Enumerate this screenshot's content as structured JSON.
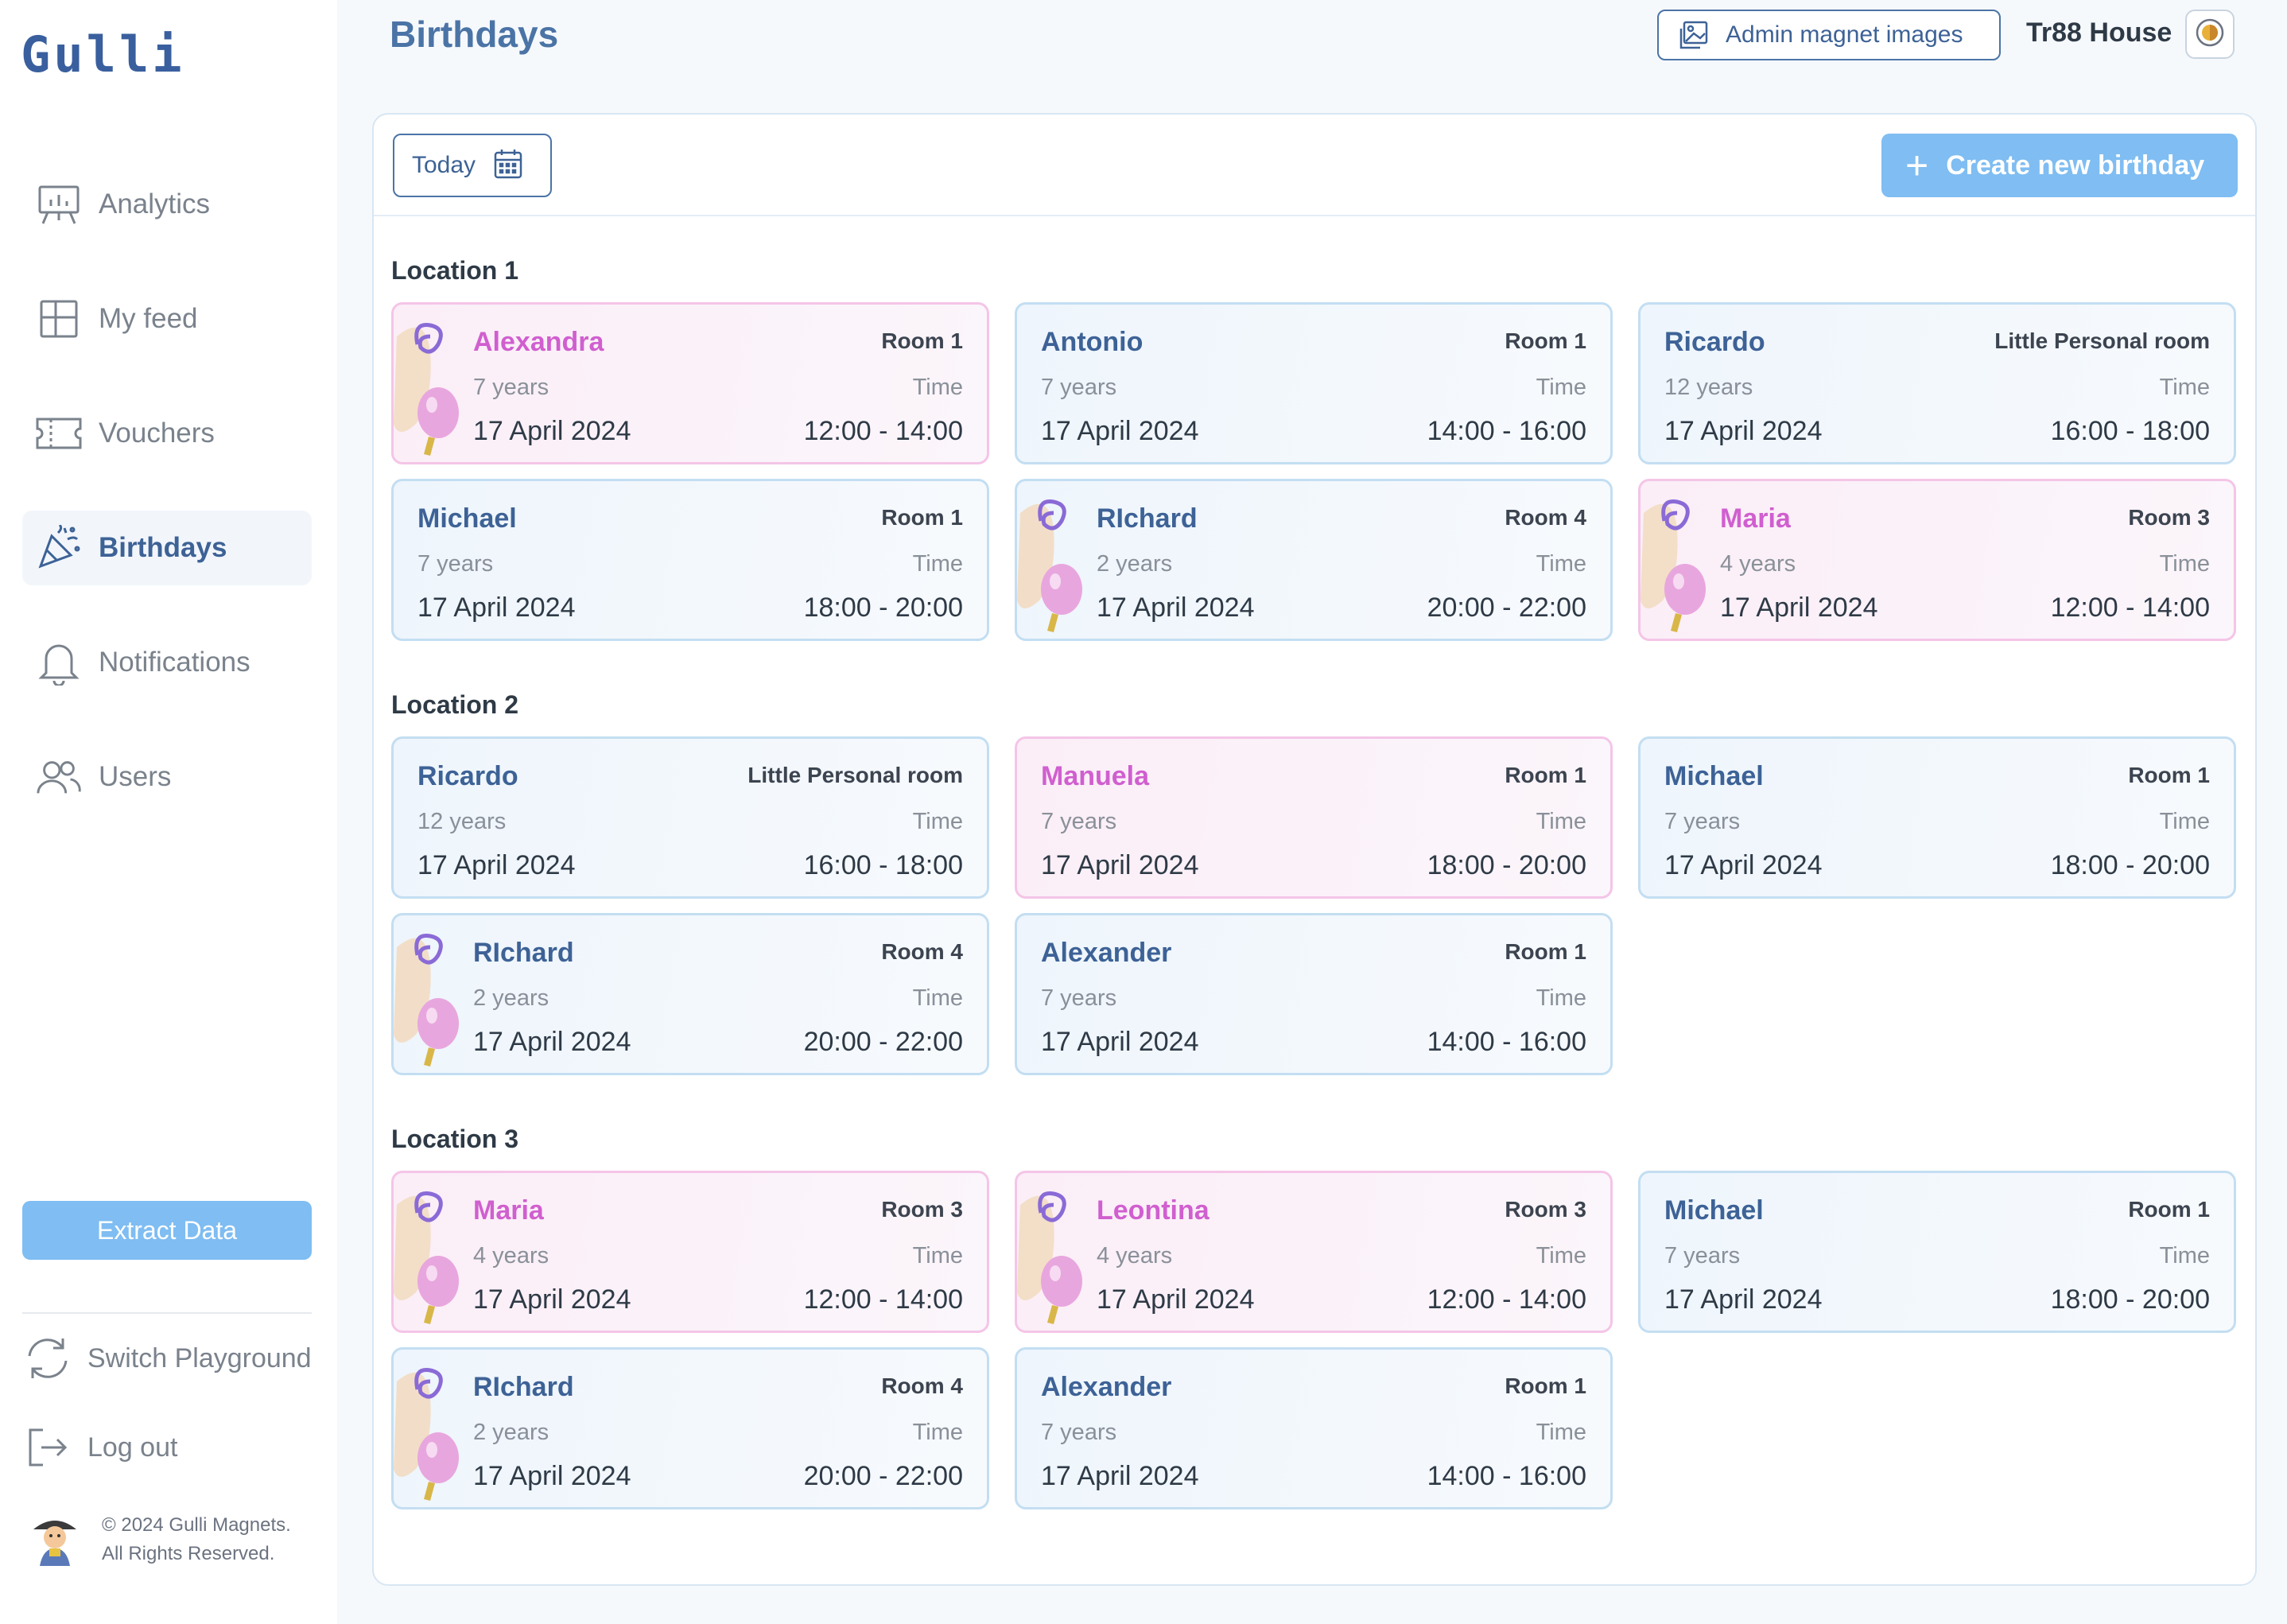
{
  "brand": {
    "logo_text": "Gulli"
  },
  "sidebar": {
    "items": [
      {
        "label": "Analytics",
        "icon": "analytics-board-icon"
      },
      {
        "label": "My feed",
        "icon": "grid-icon"
      },
      {
        "label": "Vouchers",
        "icon": "ticket-icon"
      },
      {
        "label": "Birthdays",
        "icon": "party-popper-icon",
        "active": true
      },
      {
        "label": "Notifications",
        "icon": "bell-icon"
      },
      {
        "label": "Users",
        "icon": "users-icon"
      }
    ],
    "extract_label": "Extract Data",
    "switch_label": "Switch Playground",
    "logout_label": "Log out",
    "footer_line1": "© 2024 Gulli Magnets.",
    "footer_line2": "All Rights Reserved."
  },
  "header": {
    "title": "Birthdays",
    "admin_label": "Admin magnet images",
    "house_name": "Tr88 House"
  },
  "toolbar": {
    "today_label": "Today",
    "create_label": "Create new birthday"
  },
  "colors": {
    "accent": "#7fbdf2",
    "primary": "#3d6296",
    "pink": "#d05fcf"
  },
  "locations": [
    {
      "title": "Location 1",
      "cards": [
        {
          "name": "Alexandra",
          "room": "Room 1",
          "age": "7 years",
          "time_label": "Time",
          "date": "17 April 2024",
          "time": "12:00 - 14:00",
          "pink": true,
          "balloon": true
        },
        {
          "name": "Antonio",
          "room": "Room 1",
          "age": "7 years",
          "time_label": "Time",
          "date": "17 April 2024",
          "time": "14:00 - 16:00",
          "pink": false,
          "balloon": false
        },
        {
          "name": "Ricardo",
          "room": "Little Personal room",
          "age": "12 years",
          "time_label": "Time",
          "date": "17 April 2024",
          "time": "16:00 - 18:00",
          "pink": false,
          "balloon": false
        },
        {
          "name": "Michael",
          "room": "Room 1",
          "age": "7 years",
          "time_label": "Time",
          "date": "17 April 2024",
          "time": "18:00 - 20:00",
          "pink": false,
          "balloon": false
        },
        {
          "name": "RIchard",
          "room": "Room 4",
          "age": "2 years",
          "time_label": "Time",
          "date": "17 April 2024",
          "time": "20:00 - 22:00",
          "pink": false,
          "balloon": true
        },
        {
          "name": "Maria",
          "room": "Room 3",
          "age": "4 years",
          "time_label": "Time",
          "date": "17 April 2024",
          "time": "12:00 - 14:00",
          "pink": true,
          "balloon": true
        }
      ]
    },
    {
      "title": "Location 2",
      "cards": [
        {
          "name": "Ricardo",
          "room": "Little Personal room",
          "age": "12 years",
          "time_label": "Time",
          "date": "17 April 2024",
          "time": "16:00 - 18:00",
          "pink": false,
          "balloon": false
        },
        {
          "name": "Manuela",
          "room": "Room 1",
          "age": "7 years",
          "time_label": "Time",
          "date": "17 April 2024",
          "time": "18:00 - 20:00",
          "pink": true,
          "balloon": false
        },
        {
          "name": "Michael",
          "room": "Room 1",
          "age": "7 years",
          "time_label": "Time",
          "date": "17 April 2024",
          "time": "18:00 - 20:00",
          "pink": false,
          "balloon": false
        },
        {
          "name": "RIchard",
          "room": "Room 4",
          "age": "2 years",
          "time_label": "Time",
          "date": "17 April 2024",
          "time": "20:00 - 22:00",
          "pink": false,
          "balloon": true
        },
        {
          "name": "Alexander",
          "room": "Room 1",
          "age": "7 years",
          "time_label": "Time",
          "date": "17 April 2024",
          "time": "14:00 - 16:00",
          "pink": false,
          "balloon": false
        }
      ]
    },
    {
      "title": "Location 3",
      "cards": [
        {
          "name": "Maria",
          "room": "Room 3",
          "age": "4 years",
          "time_label": "Time",
          "date": "17 April 2024",
          "time": "12:00 - 14:00",
          "pink": true,
          "balloon": true
        },
        {
          "name": "Leontina",
          "room": "Room 3",
          "age": "4 years",
          "time_label": "Time",
          "date": "17 April 2024",
          "time": "12:00 - 14:00",
          "pink": true,
          "balloon": true
        },
        {
          "name": "Michael",
          "room": "Room 1",
          "age": "7 years",
          "time_label": "Time",
          "date": "17 April 2024",
          "time": "18:00 - 20:00",
          "pink": false,
          "balloon": false
        },
        {
          "name": "RIchard",
          "room": "Room 4",
          "age": "2 years",
          "time_label": "Time",
          "date": "17 April 2024",
          "time": "20:00 - 22:00",
          "pink": false,
          "balloon": true
        },
        {
          "name": "Alexander",
          "room": "Room 1",
          "age": "7 years",
          "time_label": "Time",
          "date": "17 April 2024",
          "time": "14:00 - 16:00",
          "pink": false,
          "balloon": false
        }
      ]
    }
  ]
}
